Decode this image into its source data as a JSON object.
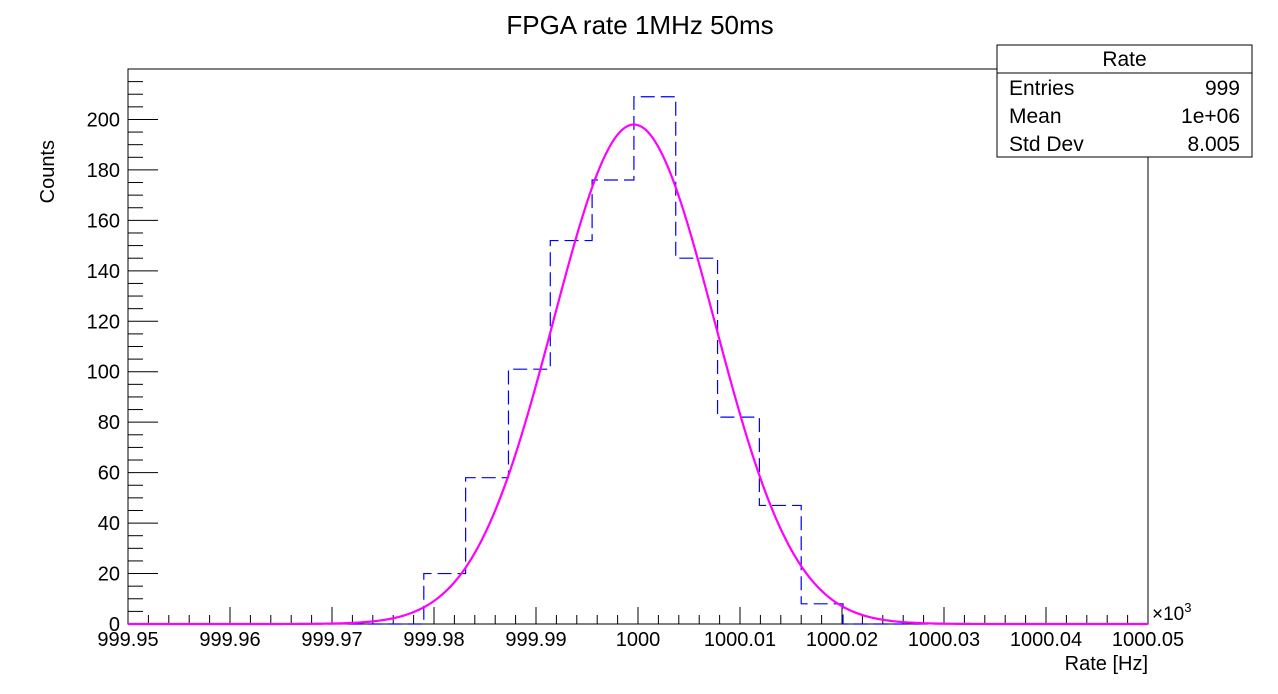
{
  "chart_data": {
    "type": "bar",
    "title": "FPGA rate 1MHz 50ms",
    "xlabel": "Rate [Hz]",
    "ylabel": "Counts",
    "x_multiplier": "×10",
    "x_multiplier_exp": "3",
    "xlim": [
      999.95,
      1000.05
    ],
    "ylim": [
      0,
      220
    ],
    "x_ticks": [
      {
        "value": 999.95,
        "label": "999.95"
      },
      {
        "value": 999.96,
        "label": "999.96"
      },
      {
        "value": 999.97,
        "label": "999.97"
      },
      {
        "value": 999.98,
        "label": "999.98"
      },
      {
        "value": 999.99,
        "label": "999.99"
      },
      {
        "value": 1000.0,
        "label": "1000"
      },
      {
        "value": 1000.01,
        "label": "1000.01"
      },
      {
        "value": 1000.02,
        "label": "1000.02"
      },
      {
        "value": 1000.03,
        "label": "1000.03"
      },
      {
        "value": 1000.04,
        "label": "1000.04"
      },
      {
        "value": 1000.05,
        "label": "1000.05"
      }
    ],
    "y_ticks": [
      {
        "value": 0,
        "label": "0"
      },
      {
        "value": 20,
        "label": "20"
      },
      {
        "value": 40,
        "label": "40"
      },
      {
        "value": 60,
        "label": "60"
      },
      {
        "value": 80,
        "label": "80"
      },
      {
        "value": 100,
        "label": "100"
      },
      {
        "value": 120,
        "label": "120"
      },
      {
        "value": 140,
        "label": "140"
      },
      {
        "value": 160,
        "label": "160"
      },
      {
        "value": 180,
        "label": "180"
      },
      {
        "value": 200,
        "label": "200"
      }
    ],
    "histogram": {
      "bin_edges": [
        999.979,
        999.9831,
        999.9873,
        999.9914,
        999.9955,
        999.9996,
        1000.0037,
        1000.0078,
        1000.0119,
        1000.016,
        1000.0201
      ],
      "counts": [
        20,
        58,
        101,
        152,
        176,
        209,
        145,
        82,
        47,
        8
      ],
      "color": "#0000ff",
      "style": "dashed"
    },
    "fit": {
      "type": "gaussian",
      "amplitude": 198,
      "mean": 999.9996,
      "sigma": 0.0079,
      "color": "#ff00ff"
    },
    "grid": false,
    "stats_box": {
      "title": "Rate",
      "placement": "top-right",
      "rows": [
        {
          "label": "Entries",
          "value": "999"
        },
        {
          "label": "Mean",
          "value": "1e+06"
        },
        {
          "label": "Std Dev",
          "value": "8.005"
        }
      ]
    }
  }
}
